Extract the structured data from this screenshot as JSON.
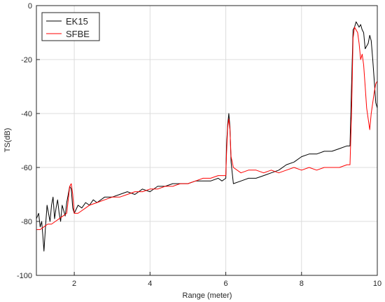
{
  "chart_data": {
    "type": "line",
    "xlabel": "Range (meter)",
    "ylabel": "TS(dB)",
    "xlim": [
      1,
      10
    ],
    "ylim": [
      -100,
      0
    ],
    "x_ticks": [
      2,
      4,
      6,
      8,
      10
    ],
    "y_ticks": [
      0,
      -20,
      -40,
      -60,
      -80,
      -100
    ],
    "grid": true,
    "legend_position": "top-left",
    "series": [
      {
        "name": "EK15",
        "color": "#000000",
        "points": [
          [
            1.0,
            -79
          ],
          [
            1.06,
            -77
          ],
          [
            1.1,
            -82
          ],
          [
            1.14,
            -80
          ],
          [
            1.18,
            -87
          ],
          [
            1.2,
            -91
          ],
          [
            1.24,
            -82
          ],
          [
            1.28,
            -74
          ],
          [
            1.32,
            -77
          ],
          [
            1.36,
            -80
          ],
          [
            1.4,
            -74
          ],
          [
            1.44,
            -71
          ],
          [
            1.48,
            -79
          ],
          [
            1.52,
            -75
          ],
          [
            1.56,
            -72
          ],
          [
            1.6,
            -77
          ],
          [
            1.64,
            -80
          ],
          [
            1.68,
            -74
          ],
          [
            1.72,
            -76
          ],
          [
            1.76,
            -78
          ],
          [
            1.8,
            -73
          ],
          [
            1.84,
            -70
          ],
          [
            1.88,
            -67
          ],
          [
            1.92,
            -68
          ],
          [
            1.96,
            -75
          ],
          [
            2.0,
            -77
          ],
          [
            2.1,
            -74
          ],
          [
            2.2,
            -75
          ],
          [
            2.3,
            -73
          ],
          [
            2.4,
            -74
          ],
          [
            2.5,
            -72
          ],
          [
            2.6,
            -73
          ],
          [
            2.8,
            -71
          ],
          [
            3.0,
            -71
          ],
          [
            3.2,
            -70
          ],
          [
            3.4,
            -69
          ],
          [
            3.6,
            -70
          ],
          [
            3.8,
            -68
          ],
          [
            4.0,
            -69
          ],
          [
            4.2,
            -67
          ],
          [
            4.4,
            -67
          ],
          [
            4.6,
            -66
          ],
          [
            4.8,
            -66
          ],
          [
            5.0,
            -66
          ],
          [
            5.2,
            -65
          ],
          [
            5.4,
            -65
          ],
          [
            5.6,
            -65
          ],
          [
            5.8,
            -64
          ],
          [
            5.9,
            -65
          ],
          [
            6.0,
            -64
          ],
          [
            6.02,
            -52
          ],
          [
            6.05,
            -44
          ],
          [
            6.08,
            -40
          ],
          [
            6.11,
            -45
          ],
          [
            6.14,
            -58
          ],
          [
            6.2,
            -66
          ],
          [
            6.4,
            -65
          ],
          [
            6.6,
            -64
          ],
          [
            6.8,
            -64
          ],
          [
            7.0,
            -63
          ],
          [
            7.2,
            -62
          ],
          [
            7.4,
            -61
          ],
          [
            7.6,
            -59
          ],
          [
            7.8,
            -58
          ],
          [
            8.0,
            -56
          ],
          [
            8.2,
            -55
          ],
          [
            8.4,
            -55
          ],
          [
            8.6,
            -54
          ],
          [
            8.8,
            -54
          ],
          [
            9.0,
            -53
          ],
          [
            9.2,
            -52
          ],
          [
            9.28,
            -52
          ],
          [
            9.32,
            -30
          ],
          [
            9.36,
            -9
          ],
          [
            9.4,
            -8
          ],
          [
            9.44,
            -6
          ],
          [
            9.48,
            -7
          ],
          [
            9.52,
            -8
          ],
          [
            9.56,
            -7
          ],
          [
            9.6,
            -9
          ],
          [
            9.64,
            -10
          ],
          [
            9.68,
            -16
          ],
          [
            9.72,
            -15
          ],
          [
            9.76,
            -14
          ],
          [
            9.8,
            -11
          ],
          [
            9.84,
            -13
          ],
          [
            9.88,
            -20
          ],
          [
            9.92,
            -28
          ],
          [
            9.96,
            -36
          ],
          [
            10.0,
            -38
          ]
        ]
      },
      {
        "name": "SFBE",
        "color": "#ff0000",
        "points": [
          [
            1.0,
            -83
          ],
          [
            1.1,
            -83
          ],
          [
            1.2,
            -82
          ],
          [
            1.3,
            -81
          ],
          [
            1.4,
            -81
          ],
          [
            1.5,
            -80
          ],
          [
            1.6,
            -79
          ],
          [
            1.7,
            -78
          ],
          [
            1.8,
            -77
          ],
          [
            1.84,
            -72
          ],
          [
            1.88,
            -67
          ],
          [
            1.92,
            -66
          ],
          [
            1.96,
            -70
          ],
          [
            2.0,
            -77
          ],
          [
            2.1,
            -77
          ],
          [
            2.2,
            -76
          ],
          [
            2.3,
            -75
          ],
          [
            2.4,
            -74
          ],
          [
            2.6,
            -73
          ],
          [
            2.8,
            -72
          ],
          [
            3.0,
            -71
          ],
          [
            3.2,
            -71
          ],
          [
            3.4,
            -70
          ],
          [
            3.6,
            -69
          ],
          [
            3.8,
            -69
          ],
          [
            4.0,
            -68
          ],
          [
            4.2,
            -68
          ],
          [
            4.4,
            -67
          ],
          [
            4.6,
            -67
          ],
          [
            4.8,
            -66
          ],
          [
            5.0,
            -66
          ],
          [
            5.2,
            -65
          ],
          [
            5.4,
            -64
          ],
          [
            5.6,
            -64
          ],
          [
            5.8,
            -63
          ],
          [
            6.0,
            -63
          ],
          [
            6.02,
            -55
          ],
          [
            6.05,
            -45
          ],
          [
            6.08,
            -42
          ],
          [
            6.11,
            -46
          ],
          [
            6.14,
            -56
          ],
          [
            6.2,
            -60
          ],
          [
            6.4,
            -62
          ],
          [
            6.6,
            -61
          ],
          [
            6.8,
            -61
          ],
          [
            7.0,
            -62
          ],
          [
            7.2,
            -61
          ],
          [
            7.4,
            -62
          ],
          [
            7.6,
            -61
          ],
          [
            7.8,
            -60
          ],
          [
            8.0,
            -61
          ],
          [
            8.2,
            -60
          ],
          [
            8.4,
            -61
          ],
          [
            8.6,
            -60
          ],
          [
            8.8,
            -60
          ],
          [
            9.0,
            -60
          ],
          [
            9.2,
            -59
          ],
          [
            9.28,
            -59
          ],
          [
            9.32,
            -40
          ],
          [
            9.36,
            -12
          ],
          [
            9.4,
            -8
          ],
          [
            9.44,
            -9
          ],
          [
            9.48,
            -10
          ],
          [
            9.52,
            -14
          ],
          [
            9.56,
            -20
          ],
          [
            9.6,
            -18
          ],
          [
            9.64,
            -22
          ],
          [
            9.68,
            -30
          ],
          [
            9.72,
            -38
          ],
          [
            9.76,
            -42
          ],
          [
            9.8,
            -46
          ],
          [
            9.84,
            -40
          ],
          [
            9.88,
            -36
          ],
          [
            9.92,
            -32
          ],
          [
            9.96,
            -29
          ],
          [
            10.0,
            -28
          ]
        ]
      }
    ]
  }
}
